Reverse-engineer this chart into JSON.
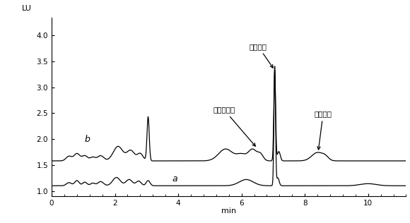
{
  "xlabel": "min",
  "ylabel": "LU",
  "xlim": [
    0,
    11.2
  ],
  "ylim": [
    0.9,
    4.35
  ],
  "yticks": [
    1,
    1.5,
    2,
    2.5,
    3,
    3.5,
    4
  ],
  "xticks": [
    0,
    2,
    4,
    6,
    8,
    10
  ],
  "background_color": "#ffffff",
  "label_a": "a",
  "label_b": "b",
  "annotation_lomefloxacin": "洛美沙星",
  "annotation_levofloxacin": "左氧氟沙星",
  "annotation_gatifloxacin": "加替沙星",
  "baseline_a": 1.1,
  "baseline_b": 1.58
}
